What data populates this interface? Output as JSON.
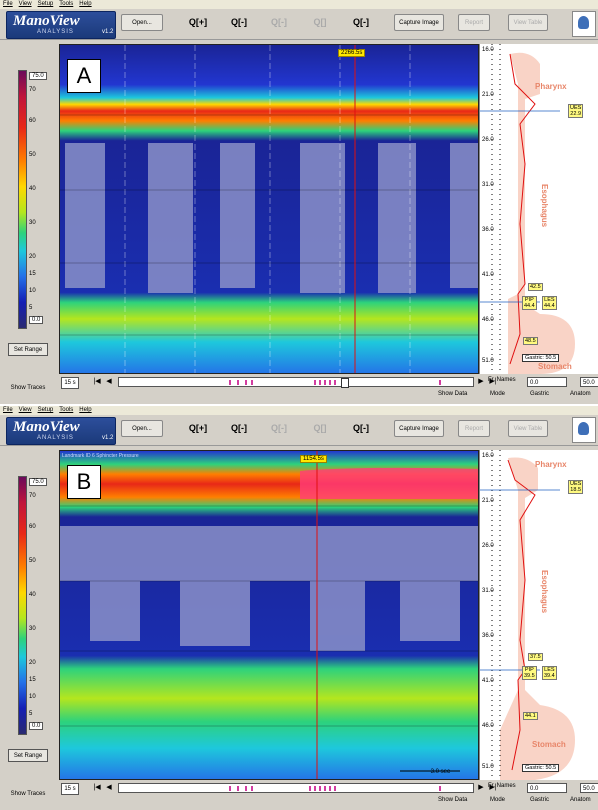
{
  "menu": [
    "File",
    "View",
    "Setup",
    "Tools",
    "Help"
  ],
  "logo": {
    "name": "ManoView",
    "sub": "ANALYSIS",
    "version": "v1.2"
  },
  "toolbar": {
    "open": "Open...",
    "capture": "Capture Image",
    "report": "Report",
    "view_table": "View Table"
  },
  "colorbar": {
    "top_value": "75.0",
    "labels": [
      "70",
      "60",
      "50",
      "40",
      "30",
      "20",
      "15",
      "10",
      "5"
    ],
    "bottom_value": "0.0"
  },
  "set_range": "Set Range",
  "show_traces": "Show Traces",
  "show_data": "Show Data",
  "duration": "15 s",
  "fr_label": "Fr. Names",
  "field_a": "0.0",
  "field_b": "50.0",
  "tabs": [
    "Mode",
    "Gastric",
    "Anatom"
  ],
  "panels": [
    {
      "letter": "A",
      "cursor_time": "2266.5s",
      "landmark": "",
      "scale_note": "",
      "depth_ticks": [
        "16.0",
        "21.0",
        "26.0",
        "31.0",
        "36.0",
        "41.0",
        "46.0",
        "51.0"
      ],
      "organs": {
        "pharynx": "Pharynx",
        "esophagus": "Esophagus",
        "stomach": "Stomach"
      },
      "markers": {
        "ues_label": "UES",
        "ues_value": "22.9",
        "pip_label": "PIP",
        "pip_value": "44.4",
        "les_label": "LES",
        "les_value": "44.4",
        "m1": "42.5",
        "m2": "48.5",
        "gastric": "Gastric: 50.5"
      }
    },
    {
      "letter": "B",
      "cursor_time": "1154.5s",
      "landmark": "Landmark ID 6 Sphincter Pressure",
      "scale_note": "3.0 sec",
      "depth_ticks": [
        "16.0",
        "21.0",
        "26.0",
        "31.0",
        "36.0",
        "41.0",
        "46.0",
        "51.0"
      ],
      "organs": {
        "pharynx": "Pharynx",
        "esophagus": "Esophagus",
        "stomach": "Stomach"
      },
      "markers": {
        "ues_label": "UES",
        "ues_value": "18.5",
        "pip_label": "PIP",
        "pip_value": "39.5",
        "les_label": "LES",
        "les_value": "39.4",
        "m1": "37.5",
        "m2": "44.1",
        "gastric": "Gastric: 50.5"
      }
    }
  ]
}
